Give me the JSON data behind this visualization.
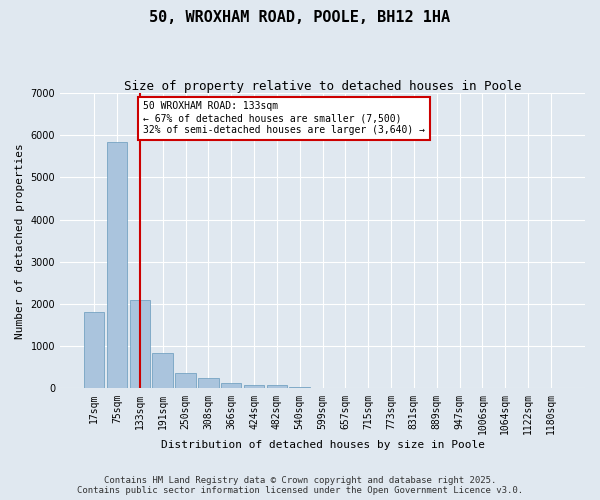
{
  "title": "50, WROXHAM ROAD, POOLE, BH12 1HA",
  "subtitle": "Size of property relative to detached houses in Poole",
  "xlabel": "Distribution of detached houses by size in Poole",
  "ylabel": "Number of detached properties",
  "bar_labels": [
    "17sqm",
    "75sqm",
    "133sqm",
    "191sqm",
    "250sqm",
    "308sqm",
    "366sqm",
    "424sqm",
    "482sqm",
    "540sqm",
    "599sqm",
    "657sqm",
    "715sqm",
    "773sqm",
    "831sqm",
    "889sqm",
    "947sqm",
    "1006sqm",
    "1064sqm",
    "1122sqm",
    "1180sqm"
  ],
  "bar_values": [
    1800,
    5850,
    2100,
    850,
    370,
    240,
    130,
    80,
    80,
    40,
    10,
    0,
    0,
    0,
    0,
    0,
    0,
    0,
    0,
    0,
    0
  ],
  "bar_color": "#aac4dd",
  "bar_edge_color": "#6699bb",
  "highlight_bar_index": 2,
  "highlight_line_color": "#cc0000",
  "annotation_text": "50 WROXHAM ROAD: 133sqm\n← 67% of detached houses are smaller (7,500)\n32% of semi-detached houses are larger (3,640) →",
  "annotation_box_color": "#ffffff",
  "annotation_box_edge_color": "#cc0000",
  "ylim": [
    0,
    7000
  ],
  "yticks": [
    0,
    1000,
    2000,
    3000,
    4000,
    5000,
    6000,
    7000
  ],
  "background_color": "#e0e8f0",
  "grid_color": "#ffffff",
  "footer_line1": "Contains HM Land Registry data © Crown copyright and database right 2025.",
  "footer_line2": "Contains public sector information licensed under the Open Government Licence v3.0.",
  "title_fontsize": 11,
  "subtitle_fontsize": 9,
  "axis_label_fontsize": 8,
  "tick_fontsize": 7,
  "annotation_fontsize": 7,
  "footer_fontsize": 6.5
}
